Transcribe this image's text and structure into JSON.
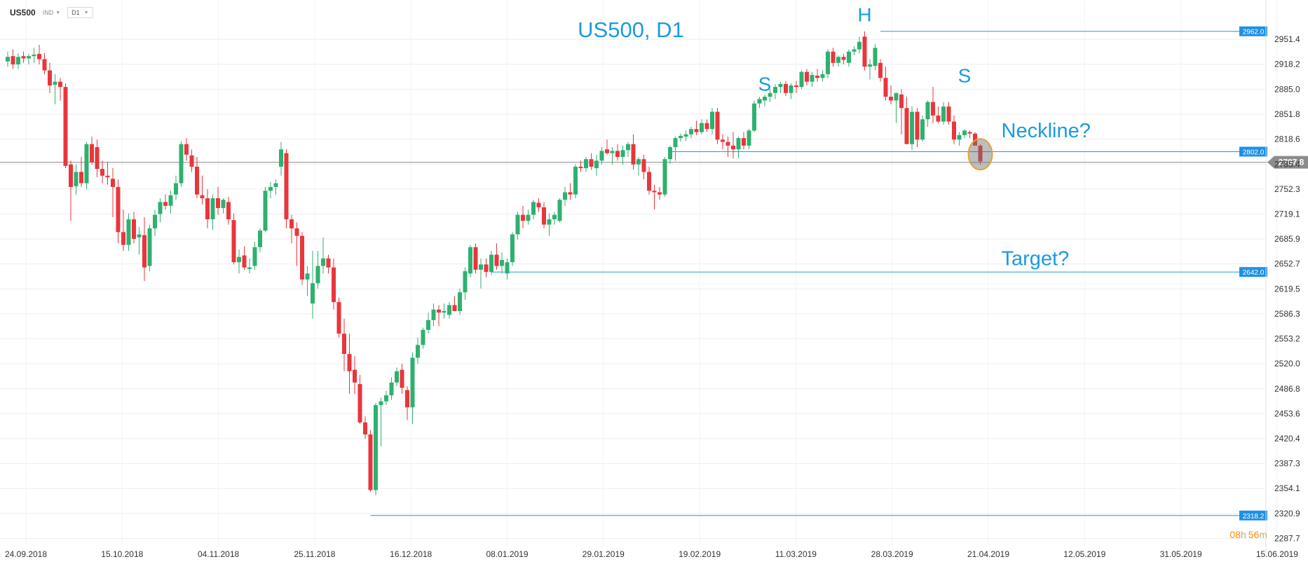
{
  "toolbar": {
    "symbol": "US500",
    "indicator_label": "IND",
    "timeframe": "D1"
  },
  "countdown": {
    "hours": "08",
    "h_unit": "h",
    "minutes": "56",
    "m_unit": "m"
  },
  "colors": {
    "bull": "#2eb16f",
    "bear": "#e8363c",
    "line": "#1a9be0",
    "price_line": "#8c8c8c",
    "countdown": "#ff8c00"
  },
  "chart_data": {
    "type": "candlestick",
    "title": "US500, D1",
    "y_ticks": [
      2951.4,
      2918.2,
      2885.0,
      2851.8,
      2818.6,
      2785.4,
      2752.3,
      2719.1,
      2685.9,
      2652.7,
      2619.5,
      2586.3,
      2553.2,
      2520.0,
      2486.8,
      2453.6,
      2420.4,
      2387.3,
      2354.1,
      2320.9,
      2287.7
    ],
    "ylim": [
      2277,
      2985
    ],
    "x_ticks": [
      "24.09.2018",
      "15.10.2018",
      "04.11.2018",
      "25.11.2018",
      "16.12.2018",
      "08.01.2019",
      "29.01.2019",
      "19.02.2019",
      "11.03.2019",
      "28.03.2019",
      "21.04.2019",
      "12.05.2019",
      "31.05.2019",
      "15.06.2019"
    ],
    "candles": [
      {
        "o": 2922,
        "h": 2935,
        "l": 2915,
        "c": 2928
      },
      {
        "o": 2929,
        "h": 2938,
        "l": 2912,
        "c": 2918
      },
      {
        "o": 2918,
        "h": 2933,
        "l": 2912,
        "c": 2928
      },
      {
        "o": 2929,
        "h": 2935,
        "l": 2920,
        "c": 2926
      },
      {
        "o": 2926,
        "h": 2932,
        "l": 2918,
        "c": 2929
      },
      {
        "o": 2929,
        "h": 2940,
        "l": 2920,
        "c": 2931
      },
      {
        "o": 2932,
        "h": 2944,
        "l": 2918,
        "c": 2925
      },
      {
        "o": 2925,
        "h": 2933,
        "l": 2905,
        "c": 2910
      },
      {
        "o": 2910,
        "h": 2920,
        "l": 2880,
        "c": 2890
      },
      {
        "o": 2891,
        "h": 2905,
        "l": 2865,
        "c": 2895
      },
      {
        "o": 2895,
        "h": 2900,
        "l": 2870,
        "c": 2888
      },
      {
        "o": 2888,
        "h": 2893,
        "l": 2780,
        "c": 2783
      },
      {
        "o": 2785,
        "h": 2790,
        "l": 2710,
        "c": 2755
      },
      {
        "o": 2756,
        "h": 2785,
        "l": 2745,
        "c": 2775
      },
      {
        "o": 2775,
        "h": 2795,
        "l": 2755,
        "c": 2760
      },
      {
        "o": 2760,
        "h": 2815,
        "l": 2752,
        "c": 2812
      },
      {
        "o": 2812,
        "h": 2822,
        "l": 2785,
        "c": 2788
      },
      {
        "o": 2808,
        "h": 2818,
        "l": 2768,
        "c": 2779
      },
      {
        "o": 2779,
        "h": 2790,
        "l": 2760,
        "c": 2770
      },
      {
        "o": 2770,
        "h": 2788,
        "l": 2758,
        "c": 2768
      },
      {
        "o": 2766,
        "h": 2780,
        "l": 2715,
        "c": 2755
      },
      {
        "o": 2755,
        "h": 2765,
        "l": 2680,
        "c": 2695
      },
      {
        "o": 2695,
        "h": 2725,
        "l": 2670,
        "c": 2678
      },
      {
        "o": 2678,
        "h": 2720,
        "l": 2670,
        "c": 2712
      },
      {
        "o": 2712,
        "h": 2722,
        "l": 2680,
        "c": 2686
      },
      {
        "o": 2688,
        "h": 2702,
        "l": 2665,
        "c": 2692
      },
      {
        "o": 2691,
        "h": 2715,
        "l": 2630,
        "c": 2648
      },
      {
        "o": 2650,
        "h": 2705,
        "l": 2643,
        "c": 2700
      },
      {
        "o": 2700,
        "h": 2725,
        "l": 2690,
        "c": 2718
      },
      {
        "o": 2719,
        "h": 2740,
        "l": 2708,
        "c": 2735
      },
      {
        "o": 2735,
        "h": 2745,
        "l": 2725,
        "c": 2730
      },
      {
        "o": 2730,
        "h": 2750,
        "l": 2720,
        "c": 2744
      },
      {
        "o": 2745,
        "h": 2770,
        "l": 2738,
        "c": 2760
      },
      {
        "o": 2760,
        "h": 2816,
        "l": 2755,
        "c": 2812
      },
      {
        "o": 2812,
        "h": 2820,
        "l": 2790,
        "c": 2798
      },
      {
        "o": 2797,
        "h": 2805,
        "l": 2775,
        "c": 2782
      },
      {
        "o": 2782,
        "h": 2795,
        "l": 2740,
        "c": 2745
      },
      {
        "o": 2744,
        "h": 2770,
        "l": 2732,
        "c": 2740
      },
      {
        "o": 2740,
        "h": 2752,
        "l": 2700,
        "c": 2712
      },
      {
        "o": 2712,
        "h": 2745,
        "l": 2698,
        "c": 2740
      },
      {
        "o": 2740,
        "h": 2755,
        "l": 2718,
        "c": 2727
      },
      {
        "o": 2727,
        "h": 2740,
        "l": 2720,
        "c": 2738
      },
      {
        "o": 2735,
        "h": 2742,
        "l": 2705,
        "c": 2712
      },
      {
        "o": 2711,
        "h": 2720,
        "l": 2652,
        "c": 2655
      },
      {
        "o": 2655,
        "h": 2672,
        "l": 2640,
        "c": 2662
      },
      {
        "o": 2664,
        "h": 2676,
        "l": 2645,
        "c": 2648
      },
      {
        "o": 2646,
        "h": 2660,
        "l": 2640,
        "c": 2648
      },
      {
        "o": 2650,
        "h": 2682,
        "l": 2645,
        "c": 2675
      },
      {
        "o": 2675,
        "h": 2700,
        "l": 2668,
        "c": 2697
      },
      {
        "o": 2697,
        "h": 2755,
        "l": 2695,
        "c": 2750
      },
      {
        "o": 2750,
        "h": 2762,
        "l": 2740,
        "c": 2755
      },
      {
        "o": 2755,
        "h": 2765,
        "l": 2745,
        "c": 2760
      },
      {
        "o": 2782,
        "h": 2815,
        "l": 2770,
        "c": 2805
      },
      {
        "o": 2800,
        "h": 2805,
        "l": 2700,
        "c": 2712
      },
      {
        "o": 2712,
        "h": 2718,
        "l": 2680,
        "c": 2700
      },
      {
        "o": 2700,
        "h": 2708,
        "l": 2650,
        "c": 2690
      },
      {
        "o": 2690,
        "h": 2695,
        "l": 2625,
        "c": 2632
      },
      {
        "o": 2632,
        "h": 2650,
        "l": 2610,
        "c": 2640
      },
      {
        "o": 2600,
        "h": 2670,
        "l": 2580,
        "c": 2627
      },
      {
        "o": 2627,
        "h": 2670,
        "l": 2620,
        "c": 2650
      },
      {
        "o": 2650,
        "h": 2688,
        "l": 2640,
        "c": 2660
      },
      {
        "o": 2660,
        "h": 2665,
        "l": 2640,
        "c": 2648
      },
      {
        "o": 2648,
        "h": 2660,
        "l": 2592,
        "c": 2602
      },
      {
        "o": 2602,
        "h": 2608,
        "l": 2555,
        "c": 2560
      },
      {
        "o": 2560,
        "h": 2580,
        "l": 2510,
        "c": 2533
      },
      {
        "o": 2533,
        "h": 2560,
        "l": 2480,
        "c": 2510
      },
      {
        "o": 2512,
        "h": 2530,
        "l": 2480,
        "c": 2495
      },
      {
        "o": 2493,
        "h": 2505,
        "l": 2440,
        "c": 2442
      },
      {
        "o": 2442,
        "h": 2450,
        "l": 2420,
        "c": 2426
      },
      {
        "o": 2426,
        "h": 2432,
        "l": 2350,
        "c": 2352
      },
      {
        "o": 2352,
        "h": 2468,
        "l": 2345,
        "c": 2465
      },
      {
        "o": 2465,
        "h": 2475,
        "l": 2410,
        "c": 2470
      },
      {
        "o": 2470,
        "h": 2484,
        "l": 2465,
        "c": 2478
      },
      {
        "o": 2478,
        "h": 2502,
        "l": 2472,
        "c": 2495
      },
      {
        "o": 2495,
        "h": 2515,
        "l": 2490,
        "c": 2510
      },
      {
        "o": 2512,
        "h": 2520,
        "l": 2480,
        "c": 2488
      },
      {
        "o": 2485,
        "h": 2490,
        "l": 2445,
        "c": 2462
      },
      {
        "o": 2462,
        "h": 2535,
        "l": 2440,
        "c": 2528
      },
      {
        "o": 2528,
        "h": 2555,
        "l": 2520,
        "c": 2545
      },
      {
        "o": 2545,
        "h": 2568,
        "l": 2540,
        "c": 2565
      },
      {
        "o": 2565,
        "h": 2588,
        "l": 2560,
        "c": 2578
      },
      {
        "o": 2578,
        "h": 2600,
        "l": 2570,
        "c": 2592
      },
      {
        "o": 2592,
        "h": 2598,
        "l": 2570,
        "c": 2588
      },
      {
        "o": 2588,
        "h": 2600,
        "l": 2580,
        "c": 2590
      },
      {
        "o": 2585,
        "h": 2602,
        "l": 2580,
        "c": 2598
      },
      {
        "o": 2598,
        "h": 2610,
        "l": 2590,
        "c": 2590
      },
      {
        "o": 2590,
        "h": 2620,
        "l": 2585,
        "c": 2615
      },
      {
        "o": 2615,
        "h": 2648,
        "l": 2605,
        "c": 2643
      },
      {
        "o": 2640,
        "h": 2678,
        "l": 2635,
        "c": 2675
      },
      {
        "o": 2675,
        "h": 2680,
        "l": 2640,
        "c": 2645
      },
      {
        "o": 2645,
        "h": 2660,
        "l": 2620,
        "c": 2652
      },
      {
        "o": 2652,
        "h": 2660,
        "l": 2635,
        "c": 2642
      },
      {
        "o": 2642,
        "h": 2670,
        "l": 2638,
        "c": 2665
      },
      {
        "o": 2665,
        "h": 2680,
        "l": 2645,
        "c": 2650
      },
      {
        "o": 2650,
        "h": 2668,
        "l": 2640,
        "c": 2658
      },
      {
        "o": 2640,
        "h": 2660,
        "l": 2632,
        "c": 2655
      },
      {
        "o": 2655,
        "h": 2695,
        "l": 2650,
        "c": 2692
      },
      {
        "o": 2692,
        "h": 2722,
        "l": 2685,
        "c": 2718
      },
      {
        "o": 2718,
        "h": 2730,
        "l": 2700,
        "c": 2710
      },
      {
        "o": 2710,
        "h": 2725,
        "l": 2705,
        "c": 2718
      },
      {
        "o": 2718,
        "h": 2738,
        "l": 2712,
        "c": 2735
      },
      {
        "o": 2734,
        "h": 2740,
        "l": 2722,
        "c": 2728
      },
      {
        "o": 2728,
        "h": 2735,
        "l": 2700,
        "c": 2705
      },
      {
        "o": 2705,
        "h": 2720,
        "l": 2690,
        "c": 2712
      },
      {
        "o": 2712,
        "h": 2722,
        "l": 2705,
        "c": 2718
      },
      {
        "o": 2710,
        "h": 2740,
        "l": 2708,
        "c": 2738
      },
      {
        "o": 2738,
        "h": 2755,
        "l": 2730,
        "c": 2748
      },
      {
        "o": 2748,
        "h": 2760,
        "l": 2738,
        "c": 2745
      },
      {
        "o": 2745,
        "h": 2785,
        "l": 2740,
        "c": 2782
      },
      {
        "o": 2782,
        "h": 2790,
        "l": 2775,
        "c": 2780
      },
      {
        "o": 2780,
        "h": 2795,
        "l": 2775,
        "c": 2792
      },
      {
        "o": 2792,
        "h": 2800,
        "l": 2778,
        "c": 2782
      },
      {
        "o": 2780,
        "h": 2798,
        "l": 2770,
        "c": 2790
      },
      {
        "o": 2790,
        "h": 2808,
        "l": 2785,
        "c": 2803
      },
      {
        "o": 2805,
        "h": 2818,
        "l": 2798,
        "c": 2800
      },
      {
        "o": 2800,
        "h": 2808,
        "l": 2785,
        "c": 2803
      },
      {
        "o": 2803,
        "h": 2812,
        "l": 2790,
        "c": 2795
      },
      {
        "o": 2795,
        "h": 2810,
        "l": 2785,
        "c": 2804
      },
      {
        "o": 2804,
        "h": 2815,
        "l": 2795,
        "c": 2812
      },
      {
        "o": 2812,
        "h": 2825,
        "l": 2778,
        "c": 2785
      },
      {
        "o": 2785,
        "h": 2795,
        "l": 2770,
        "c": 2792
      },
      {
        "o": 2792,
        "h": 2798,
        "l": 2765,
        "c": 2775
      },
      {
        "o": 2775,
        "h": 2782,
        "l": 2745,
        "c": 2750
      },
      {
        "o": 2750,
        "h": 2758,
        "l": 2725,
        "c": 2748
      },
      {
        "o": 2748,
        "h": 2755,
        "l": 2738,
        "c": 2745
      },
      {
        "o": 2745,
        "h": 2795,
        "l": 2742,
        "c": 2792
      },
      {
        "o": 2792,
        "h": 2810,
        "l": 2786,
        "c": 2808
      },
      {
        "o": 2808,
        "h": 2822,
        "l": 2790,
        "c": 2820
      },
      {
        "o": 2820,
        "h": 2826,
        "l": 2815,
        "c": 2823
      },
      {
        "o": 2822,
        "h": 2830,
        "l": 2816,
        "c": 2825
      },
      {
        "o": 2825,
        "h": 2835,
        "l": 2820,
        "c": 2832
      },
      {
        "o": 2832,
        "h": 2843,
        "l": 2824,
        "c": 2828
      },
      {
        "o": 2828,
        "h": 2845,
        "l": 2825,
        "c": 2840
      },
      {
        "o": 2840,
        "h": 2845,
        "l": 2828,
        "c": 2832
      },
      {
        "o": 2832,
        "h": 2860,
        "l": 2825,
        "c": 2855
      },
      {
        "o": 2855,
        "h": 2860,
        "l": 2812,
        "c": 2818
      },
      {
        "o": 2818,
        "h": 2825,
        "l": 2805,
        "c": 2815
      },
      {
        "o": 2815,
        "h": 2822,
        "l": 2795,
        "c": 2810
      },
      {
        "o": 2810,
        "h": 2828,
        "l": 2793,
        "c": 2805
      },
      {
        "o": 2805,
        "h": 2822,
        "l": 2793,
        "c": 2820
      },
      {
        "o": 2820,
        "h": 2828,
        "l": 2805,
        "c": 2810
      },
      {
        "o": 2810,
        "h": 2832,
        "l": 2805,
        "c": 2830
      },
      {
        "o": 2830,
        "h": 2870,
        "l": 2828,
        "c": 2866
      },
      {
        "o": 2866,
        "h": 2875,
        "l": 2860,
        "c": 2872
      },
      {
        "o": 2870,
        "h": 2878,
        "l": 2862,
        "c": 2875
      },
      {
        "o": 2875,
        "h": 2885,
        "l": 2868,
        "c": 2880
      },
      {
        "o": 2880,
        "h": 2892,
        "l": 2872,
        "c": 2888
      },
      {
        "o": 2888,
        "h": 2895,
        "l": 2880,
        "c": 2892
      },
      {
        "o": 2892,
        "h": 2896,
        "l": 2876,
        "c": 2880
      },
      {
        "o": 2880,
        "h": 2893,
        "l": 2872,
        "c": 2890
      },
      {
        "o": 2890,
        "h": 2896,
        "l": 2880,
        "c": 2888
      },
      {
        "o": 2888,
        "h": 2910,
        "l": 2885,
        "c": 2908
      },
      {
        "o": 2908,
        "h": 2912,
        "l": 2890,
        "c": 2895
      },
      {
        "o": 2895,
        "h": 2908,
        "l": 2888,
        "c": 2904
      },
      {
        "o": 2903,
        "h": 2912,
        "l": 2895,
        "c": 2900
      },
      {
        "o": 2900,
        "h": 2910,
        "l": 2895,
        "c": 2905
      },
      {
        "o": 2905,
        "h": 2938,
        "l": 2900,
        "c": 2935
      },
      {
        "o": 2935,
        "h": 2940,
        "l": 2915,
        "c": 2920
      },
      {
        "o": 2920,
        "h": 2930,
        "l": 2915,
        "c": 2928
      },
      {
        "o": 2928,
        "h": 2932,
        "l": 2918,
        "c": 2924
      },
      {
        "o": 2920,
        "h": 2938,
        "l": 2915,
        "c": 2935
      },
      {
        "o": 2935,
        "h": 2942,
        "l": 2930,
        "c": 2938
      },
      {
        "o": 2938,
        "h": 2955,
        "l": 2932,
        "c": 2948
      },
      {
        "o": 2955,
        "h": 2962,
        "l": 2910,
        "c": 2915
      },
      {
        "o": 2915,
        "h": 2925,
        "l": 2898,
        "c": 2918
      },
      {
        "o": 2916,
        "h": 2945,
        "l": 2910,
        "c": 2940
      },
      {
        "o": 2920,
        "h": 2925,
        "l": 2895,
        "c": 2900
      },
      {
        "o": 2900,
        "h": 2915,
        "l": 2870,
        "c": 2875
      },
      {
        "o": 2875,
        "h": 2890,
        "l": 2865,
        "c": 2870
      },
      {
        "o": 2870,
        "h": 2880,
        "l": 2840,
        "c": 2880
      },
      {
        "o": 2878,
        "h": 2885,
        "l": 2825,
        "c": 2860
      },
      {
        "o": 2860,
        "h": 2875,
        "l": 2815,
        "c": 2812
      },
      {
        "o": 2812,
        "h": 2862,
        "l": 2804,
        "c": 2855
      },
      {
        "o": 2855,
        "h": 2860,
        "l": 2808,
        "c": 2818
      },
      {
        "o": 2818,
        "h": 2850,
        "l": 2815,
        "c": 2845
      },
      {
        "o": 2845,
        "h": 2870,
        "l": 2835,
        "c": 2868
      },
      {
        "o": 2868,
        "h": 2888,
        "l": 2840,
        "c": 2850
      },
      {
        "o": 2850,
        "h": 2862,
        "l": 2840,
        "c": 2842
      },
      {
        "o": 2842,
        "h": 2868,
        "l": 2838,
        "c": 2862
      },
      {
        "o": 2862,
        "h": 2868,
        "l": 2838,
        "c": 2842
      },
      {
        "o": 2842,
        "h": 2850,
        "l": 2812,
        "c": 2818
      },
      {
        "o": 2818,
        "h": 2828,
        "l": 2810,
        "c": 2824
      },
      {
        "o": 2824,
        "h": 2832,
        "l": 2820,
        "c": 2830
      },
      {
        "o": 2828,
        "h": 2830,
        "l": 2820,
        "c": 2826
      },
      {
        "o": 2826,
        "h": 2828,
        "l": 2810,
        "c": 2810
      },
      {
        "o": 2810,
        "h": 2812,
        "l": 2785,
        "c": 2789
      }
    ],
    "horizontal_levels": [
      {
        "value": 2962.0,
        "label": "2962.0",
        "from_candle": 166
      },
      {
        "value": 2802.0,
        "label": "2802.0",
        "from_candle": 126
      },
      {
        "value": 2642.0,
        "label": "2642.0",
        "from_candle": 92
      },
      {
        "value": 2318.2,
        "label": "2318.2",
        "from_candle": 69
      }
    ],
    "current_price": {
      "value": 2787.8,
      "label": "2787.8"
    },
    "annotations": {
      "shoulder_left": "S",
      "head": "H",
      "shoulder_right": "S",
      "neckline": "Neckline?",
      "target": "Target?"
    },
    "annotation_anchors": {
      "shoulder_left": {
        "candle": 144,
        "value": 2883
      },
      "head": {
        "candle": 163,
        "value": 2975
      },
      "shoulder_right": {
        "candle": 182,
        "value": 2894
      },
      "neckline": {
        "candle": 189,
        "value": 2821
      },
      "target": {
        "candle": 189,
        "value": 2651
      }
    }
  }
}
